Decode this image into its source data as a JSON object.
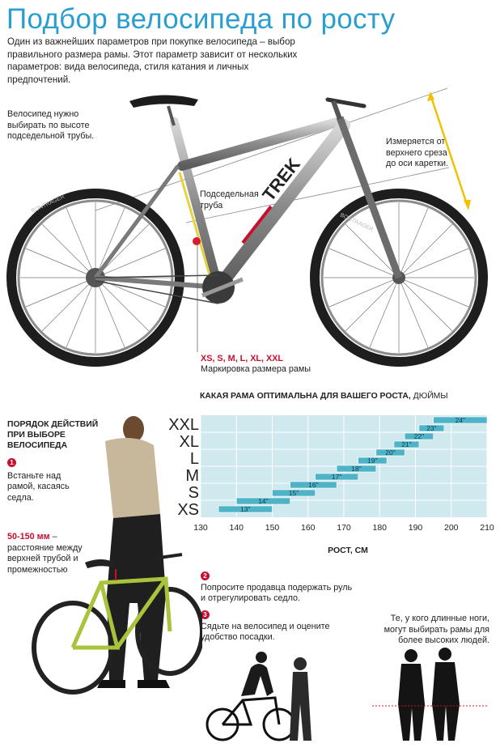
{
  "title": "Подбор велосипеда по росту",
  "intro": "Один из важнейших параметров при покупке велосипеда – выбор правильного размера рамы. Этот параметр зависит от нескольких параметров: вида велосипеда, стиля катания и личных предпочтений.",
  "notes": {
    "seat_height": "Велосипед нужно выбирать по высоте подседельной трубы.",
    "measure": "Измеряется от верхнего среза до оси каретки.",
    "seat_tube": "Подседельная труба",
    "size_codes": "XS, S, M, L, XL, XXL",
    "size_marking": "Маркировка размера рамы"
  },
  "bike_brand": {
    "frame": "TREK",
    "tire": "BONTRAGER"
  },
  "chart_data": {
    "type": "bar",
    "title": "КАКАЯ РАМА ОПТИМАЛЬНА ДЛЯ ВАШЕГО РОСТА,",
    "title_unit": "ДЮЙМЫ",
    "xlabel": "РОСТ, СМ",
    "xlim": [
      130,
      210
    ],
    "x_ticks": [
      130,
      140,
      150,
      160,
      170,
      180,
      190,
      200,
      210
    ],
    "y_categories": [
      "XXL",
      "XL",
      "L",
      "M",
      "S",
      "XS"
    ],
    "bars": [
      {
        "label": "24\"",
        "start": 195,
        "end": 210
      },
      {
        "label": "23\"",
        "start": 191,
        "end": 198
      },
      {
        "label": "22\"",
        "start": 187,
        "end": 195
      },
      {
        "label": "21\"",
        "start": 184,
        "end": 191
      },
      {
        "label": "20\"",
        "start": 179,
        "end": 187
      },
      {
        "label": "19\"",
        "start": 174,
        "end": 182
      },
      {
        "label": "18\"",
        "start": 168,
        "end": 179
      },
      {
        "label": "17\"",
        "start": 162,
        "end": 174
      },
      {
        "label": "16\"",
        "start": 155,
        "end": 168
      },
      {
        "label": "15\"",
        "start": 150,
        "end": 162
      },
      {
        "label": "14\"",
        "start": 140,
        "end": 155
      },
      {
        "label": "13\"",
        "start": 135,
        "end": 150
      }
    ],
    "colors": {
      "band": "#cfe9ef",
      "bar": "#4fb3c8",
      "grid": "#ffffff"
    }
  },
  "steps": {
    "heading": "ПОРЯДОК ДЕЙСТВИЙ ПРИ ВЫБОРЕ ВЕЛОСИПЕДА",
    "items": [
      {
        "num": "1",
        "text": "Встаньте над рамой, касаясь седла."
      },
      {
        "num": "2",
        "text": "Попросите продавца подержать руль и отрегулировать седло."
      },
      {
        "num": "3",
        "text": "Сядьте на велосипед и оцените удобство посадки."
      }
    ]
  },
  "gap": {
    "range": "50-150 мм",
    "text": "– расстояние между верхней трубой и промежностью"
  },
  "long_legs_note": "Те, у кого длинные ноги, могут выбирать рамы для более высоких людей."
}
